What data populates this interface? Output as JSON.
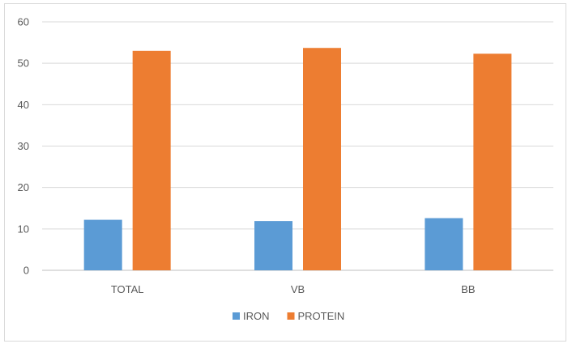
{
  "chart_data": {
    "type": "bar",
    "categories": [
      "TOTAL",
      "VB",
      "BB"
    ],
    "series": [
      {
        "name": "IRON",
        "values": [
          12.2,
          11.9,
          12.6
        ],
        "color": "#5b9bd5"
      },
      {
        "name": "PROTEIN",
        "values": [
          53.0,
          53.7,
          52.3
        ],
        "color": "#ed7d31"
      }
    ],
    "ylim": [
      0,
      60
    ],
    "yticks": [
      0,
      10,
      20,
      30,
      40,
      50,
      60
    ],
    "grid": true,
    "legend_position": "bottom"
  }
}
